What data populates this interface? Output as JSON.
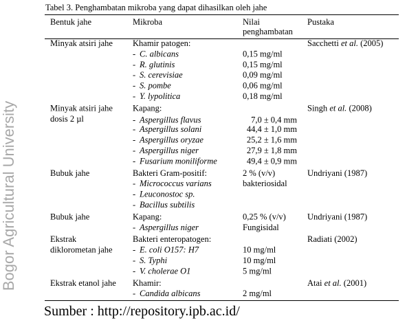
{
  "watermark": "Bogor Agricultural University",
  "caption": "Tabel 3. Penghambatan mikroba yang dapat dihasilkan oleh jahe",
  "header": {
    "bentuk": "Bentuk jahe",
    "mikroba": "Mikroba",
    "nilai": [
      "Nilai",
      "penghambatan"
    ],
    "pustaka": "Pustaka"
  },
  "rows": [
    {
      "bentuk": [
        "Minyak atsiri jahe"
      ],
      "mikroba": "Khamir patogen:",
      "items": [
        "C. albicans",
        "R. glutinis",
        "S. cerevisiae",
        "S. pombe",
        "Y. lypolitica"
      ],
      "nilai": [
        "0,15 mg/ml",
        "0,15 mg/ml",
        "0,09 mg/ml",
        "0,06 mg/ml",
        "0,18 mg/ml"
      ],
      "pustaka": [
        "Sacchetti ",
        "et al.",
        " (2005)"
      ]
    },
    {
      "bentuk": [
        "Minyak atsiri jahe",
        "dosis 2 µl"
      ],
      "mikroba": "Kapang:",
      "items": [
        "Aspergillus flavus",
        "Aspergillus solani",
        "Aspergillus oryzae",
        "Aspergillus niger",
        "Fusarium moniliforme"
      ],
      "nilai": [
        "7,0 ± 0,4 mm",
        "44,4 ± 1,0 mm",
        "25,2 ± 1,6 mm",
        "27,9 ± 1,8 mm",
        "49,4 ± 0,9 mm"
      ],
      "pustaka": [
        "Singh ",
        "et al.",
        " (2008)"
      ]
    },
    {
      "bentuk": [
        "Bubuk jahe"
      ],
      "mikroba": "Bakteri Gram-positif:",
      "items": [
        "Micrococcus varians",
        "Leuconostoc sp.",
        "Bacillus subtilis"
      ],
      "nilai_heading": "2 % (v/v)",
      "nilai": [
        "bakteriosidal"
      ],
      "pustaka": [
        "Undriyani (1987)"
      ]
    },
    {
      "bentuk": [
        "Bubuk jahe"
      ],
      "mikroba": "Kapang:",
      "items": [
        "Aspergillus niger"
      ],
      "nilai_heading": "0,25 % (v/v)",
      "nilai": [
        "Fungisidal"
      ],
      "pustaka": [
        "Undriyani (1987)"
      ]
    },
    {
      "bentuk": [
        "Ekstrak",
        "diklorometan jahe"
      ],
      "mikroba": "Bakteri enteropatogen:",
      "items": [
        "E. coli O157: H7",
        "S. Typhi",
        "V. cholerae O1"
      ],
      "nilai": [
        "10 mg/ml",
        "10 mg/ml",
        "5 mg/ml"
      ],
      "pustaka": [
        "Radiati (2002)"
      ]
    },
    {
      "bentuk": [
        "Ekstrak etanol jahe"
      ],
      "mikroba": "Khamir:",
      "items": [
        "Candida albicans"
      ],
      "nilai": [
        "2 mg/ml"
      ],
      "pustaka": [
        "Atai ",
        "et al.",
        " (2001)"
      ]
    }
  ],
  "source": "Sumber : http://repository.ipb.ac.id/"
}
